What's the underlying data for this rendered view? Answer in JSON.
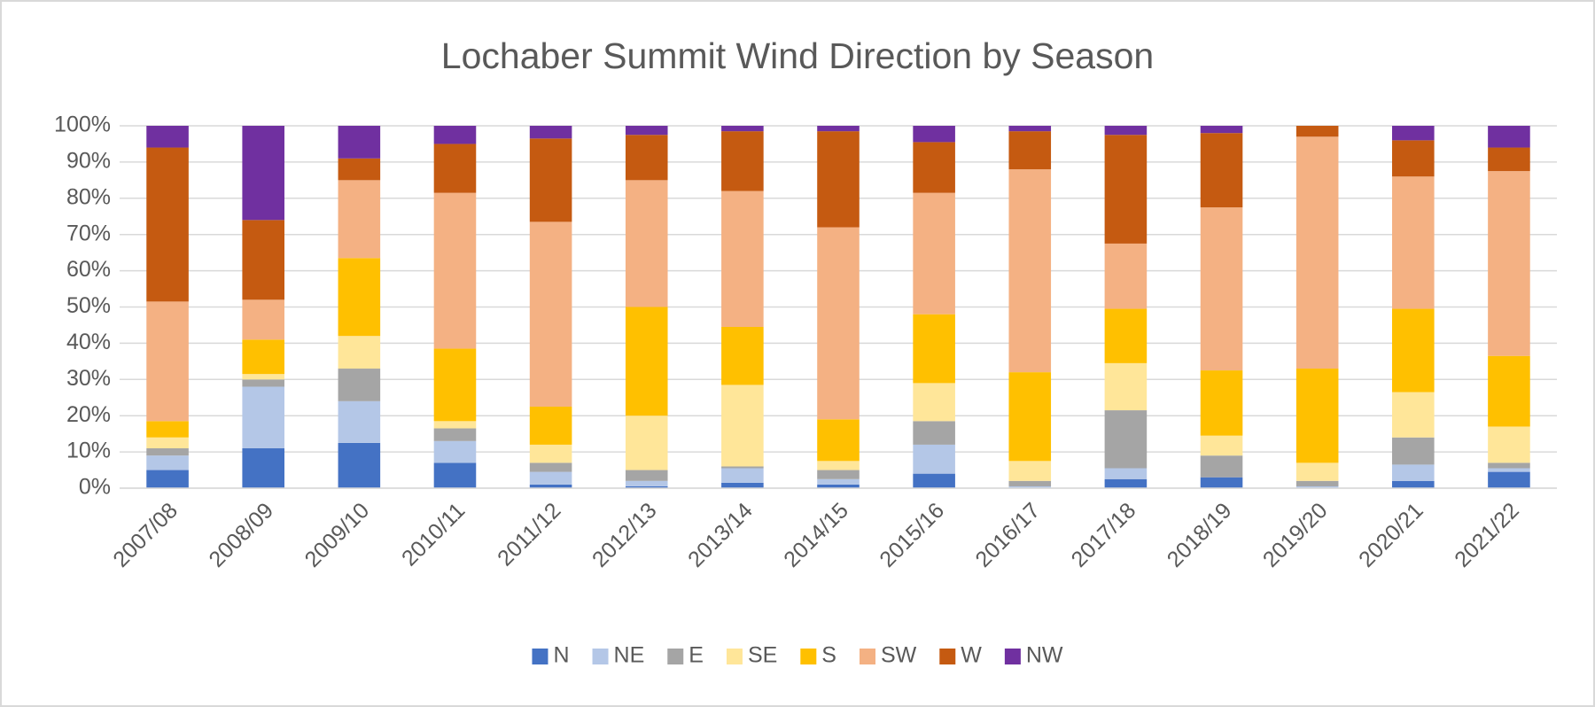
{
  "chart_data": {
    "type": "stacked_bar",
    "title": "Lochaber Summit Wind Direction by Season",
    "categories": [
      "2007/08",
      "2008/09",
      "2009/10",
      "2010/11",
      "2011/12",
      "2012/13",
      "2013/14",
      "2014/15",
      "2015/16",
      "2016/17",
      "2017/18",
      "2018/19",
      "2019/20",
      "2020/21",
      "2021/22"
    ],
    "series": [
      {
        "name": "N",
        "color": "#4472c4",
        "values": [
          5,
          11,
          12.5,
          7,
          1,
          0.5,
          1.5,
          1,
          4,
          0,
          2.5,
          3,
          0,
          2,
          4.5
        ]
      },
      {
        "name": "NE",
        "color": "#b4c7e7",
        "values": [
          4,
          17,
          11.5,
          6,
          3.5,
          1.5,
          4,
          1.5,
          8,
          0.5,
          3,
          0,
          0.5,
          4.5,
          1
        ]
      },
      {
        "name": "E",
        "color": "#a5a5a5",
        "values": [
          2,
          2,
          9,
          3.5,
          2.5,
          3,
          0.5,
          2.5,
          6.5,
          1.5,
          16,
          6,
          1.5,
          7.5,
          1.5
        ]
      },
      {
        "name": "SE",
        "color": "#ffe699",
        "values": [
          3,
          1.5,
          9,
          2,
          5,
          15,
          22.5,
          2.5,
          10.5,
          5.5,
          13,
          5.5,
          5,
          12.5,
          10
        ]
      },
      {
        "name": "S",
        "color": "#ffc000",
        "values": [
          4.5,
          9.5,
          21.5,
          20,
          10.5,
          30,
          16,
          11.5,
          19,
          24.5,
          15,
          18,
          26,
          23,
          19.5
        ]
      },
      {
        "name": "SW",
        "color": "#f4b183",
        "values": [
          33,
          11,
          21.5,
          43,
          51,
          35,
          37.5,
          53,
          33.5,
          56,
          18,
          45,
          64,
          36.5,
          51
        ]
      },
      {
        "name": "W",
        "color": "#c55a11",
        "values": [
          42.5,
          22,
          6,
          13.5,
          23,
          12.5,
          16.5,
          26.5,
          14,
          10.5,
          30,
          20.5,
          3,
          10,
          6.5
        ]
      },
      {
        "name": "NW",
        "color": "#7030a0",
        "values": [
          6,
          26,
          9,
          5,
          3.5,
          2.5,
          1.5,
          1.5,
          4.5,
          1.5,
          2.5,
          2,
          0,
          4,
          6
        ]
      }
    ],
    "ylim": [
      0,
      100
    ],
    "yticks": [
      {
        "value": 0,
        "label": "0%"
      },
      {
        "value": 10,
        "label": "10%"
      },
      {
        "value": 20,
        "label": "20%"
      },
      {
        "value": 30,
        "label": "30%"
      },
      {
        "value": 40,
        "label": "40%"
      },
      {
        "value": 50,
        "label": "50%"
      },
      {
        "value": 60,
        "label": "60%"
      },
      {
        "value": 70,
        "label": "70%"
      },
      {
        "value": 80,
        "label": "80%"
      },
      {
        "value": 90,
        "label": "90%"
      },
      {
        "value": 100,
        "label": "100%"
      }
    ],
    "grid": true,
    "legend": "bottom"
  }
}
